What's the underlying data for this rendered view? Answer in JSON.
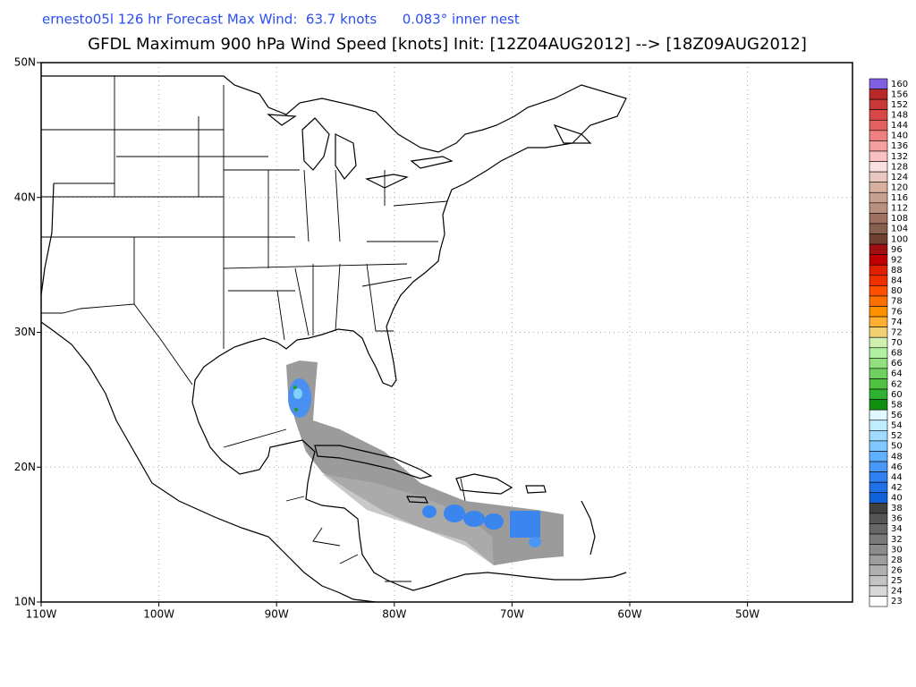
{
  "header": {
    "subtitle": "ernesto05l 126 hr Forecast Max Wind:  63.7 knots      0.083° inner nest",
    "title": "GFDL Maximum 900 hPa Wind Speed [knots] Init: [12Z04AUG2012] --> [18Z09AUG2012]"
  },
  "map": {
    "lat_labels": [
      "50N",
      "40N",
      "30N",
      "20N",
      "10N"
    ],
    "lon_labels": [
      "110W",
      "100W",
      "90W",
      "80W",
      "70W",
      "60W",
      "50W"
    ]
  },
  "colorbar": {
    "levels": [
      {
        "label": "160",
        "color": "#8060e0"
      },
      {
        "label": "156",
        "color": "#b82828"
      },
      {
        "label": "152",
        "color": "#c83838"
      },
      {
        "label": "148",
        "color": "#d84848"
      },
      {
        "label": "144",
        "color": "#e46060"
      },
      {
        "label": "140",
        "color": "#f08080"
      },
      {
        "label": "136",
        "color": "#f4a0a0"
      },
      {
        "label": "132",
        "color": "#f8c0c0"
      },
      {
        "label": "128",
        "color": "#fae0e0"
      },
      {
        "label": "124",
        "color": "#e8c8c0"
      },
      {
        "label": "120",
        "color": "#d8b0a0"
      },
      {
        "label": "116",
        "color": "#c8a090"
      },
      {
        "label": "112",
        "color": "#b89080"
      },
      {
        "label": "108",
        "color": "#a07060"
      },
      {
        "label": "104",
        "color": "#886050"
      },
      {
        "label": "100",
        "color": "#704030"
      },
      {
        "label": "96",
        "color": "#a01010"
      },
      {
        "label": "92",
        "color": "#c00000"
      },
      {
        "label": "88",
        "color": "#e02000"
      },
      {
        "label": "84",
        "color": "#f03000"
      },
      {
        "label": "80",
        "color": "#ff5000"
      },
      {
        "label": "78",
        "color": "#ff7000"
      },
      {
        "label": "76",
        "color": "#ff9000"
      },
      {
        "label": "74",
        "color": "#ffb030"
      },
      {
        "label": "72",
        "color": "#f0d070"
      },
      {
        "label": "70",
        "color": "#d0f0b0"
      },
      {
        "label": "68",
        "color": "#b0f0a0"
      },
      {
        "label": "66",
        "color": "#90e080"
      },
      {
        "label": "64",
        "color": "#70d060"
      },
      {
        "label": "62",
        "color": "#50c040"
      },
      {
        "label": "60",
        "color": "#30b030"
      },
      {
        "label": "58",
        "color": "#109010"
      },
      {
        "label": "56",
        "color": "#e0f8ff"
      },
      {
        "label": "54",
        "color": "#c0ecff"
      },
      {
        "label": "52",
        "color": "#a0dcff"
      },
      {
        "label": "50",
        "color": "#80c8ff"
      },
      {
        "label": "48",
        "color": "#60b0ff"
      },
      {
        "label": "46",
        "color": "#4898f8"
      },
      {
        "label": "44",
        "color": "#3080f0"
      },
      {
        "label": "42",
        "color": "#2070e8"
      },
      {
        "label": "40",
        "color": "#1060d8"
      },
      {
        "label": "38",
        "color": "#404040"
      },
      {
        "label": "36",
        "color": "#555555"
      },
      {
        "label": "34",
        "color": "#686868"
      },
      {
        "label": "32",
        "color": "#7a7a7a"
      },
      {
        "label": "30",
        "color": "#8c8c8c"
      },
      {
        "label": "28",
        "color": "#9e9e9e"
      },
      {
        "label": "26",
        "color": "#b0b0b0"
      },
      {
        "label": "25",
        "color": "#c4c4c4"
      },
      {
        "label": "24",
        "color": "#d8d8d8"
      },
      {
        "label": "23",
        "color": "#ffffff"
      }
    ]
  }
}
